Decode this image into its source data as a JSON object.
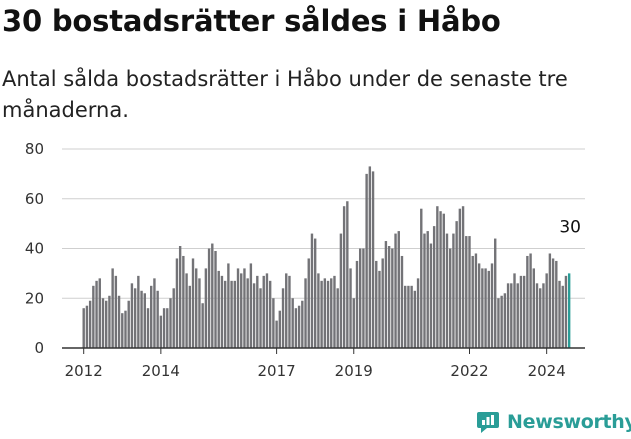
{
  "title": "30 bostadsrätter såldes i Håbo",
  "subtitle": "Antal sålda bostadsrätter i Håbo under de senaste tre månaderna.",
  "brand": {
    "name": "Newsworthy",
    "icon": "newsworthy-logo-icon",
    "color": "#2a9d97"
  },
  "colors": {
    "bar": "#737377",
    "highlight": "#2a9d97",
    "grid": "#cfcfcf",
    "axis": "#333333"
  },
  "chart_data": {
    "type": "bar",
    "title": "30 bostadsrätter såldes i Håbo",
    "xlabel": "",
    "ylabel": "",
    "ylim": [
      0,
      80
    ],
    "yticks": [
      0,
      20,
      40,
      60,
      80
    ],
    "grid": true,
    "x_start": "2012-01",
    "x_tick_labels": [
      "2012",
      "2014",
      "2017",
      "2019",
      "2022",
      "2024"
    ],
    "x_tick_years": [
      2012,
      2014,
      2017,
      2019,
      2022,
      2024
    ],
    "series": [
      {
        "values": [
          16,
          17,
          19,
          25,
          27,
          28,
          20,
          19,
          21,
          32,
          29,
          21,
          14,
          15,
          19,
          26,
          24,
          29,
          23,
          22,
          16,
          25,
          28,
          23,
          13,
          16,
          16,
          20,
          24,
          36,
          41,
          37,
          30,
          25,
          36,
          32,
          28,
          18,
          32,
          40,
          42,
          39,
          31,
          29,
          27,
          34,
          27,
          27,
          32,
          30,
          32,
          28,
          34,
          26,
          29,
          24,
          29,
          30,
          27,
          20,
          11,
          15,
          24,
          30,
          29,
          20,
          16,
          17,
          19,
          28,
          36,
          46,
          44,
          30,
          27,
          28,
          27,
          28,
          29,
          24,
          46,
          57,
          59,
          32,
          20,
          35,
          40,
          40,
          70,
          73,
          71,
          35,
          31,
          36,
          43,
          41,
          40,
          46,
          47,
          37,
          25,
          25,
          25,
          23,
          28,
          56,
          46,
          47,
          42,
          49,
          57,
          55,
          54,
          46,
          40,
          46,
          51,
          56,
          57,
          45,
          45,
          37,
          38,
          34,
          32,
          32,
          31,
          34,
          44,
          20,
          21,
          22,
          26,
          26,
          30,
          26,
          29,
          29,
          37,
          38,
          32,
          26,
          24,
          26,
          30,
          38,
          36,
          35,
          27,
          25,
          29,
          30
        ]
      }
    ],
    "last_value_label": "30"
  }
}
